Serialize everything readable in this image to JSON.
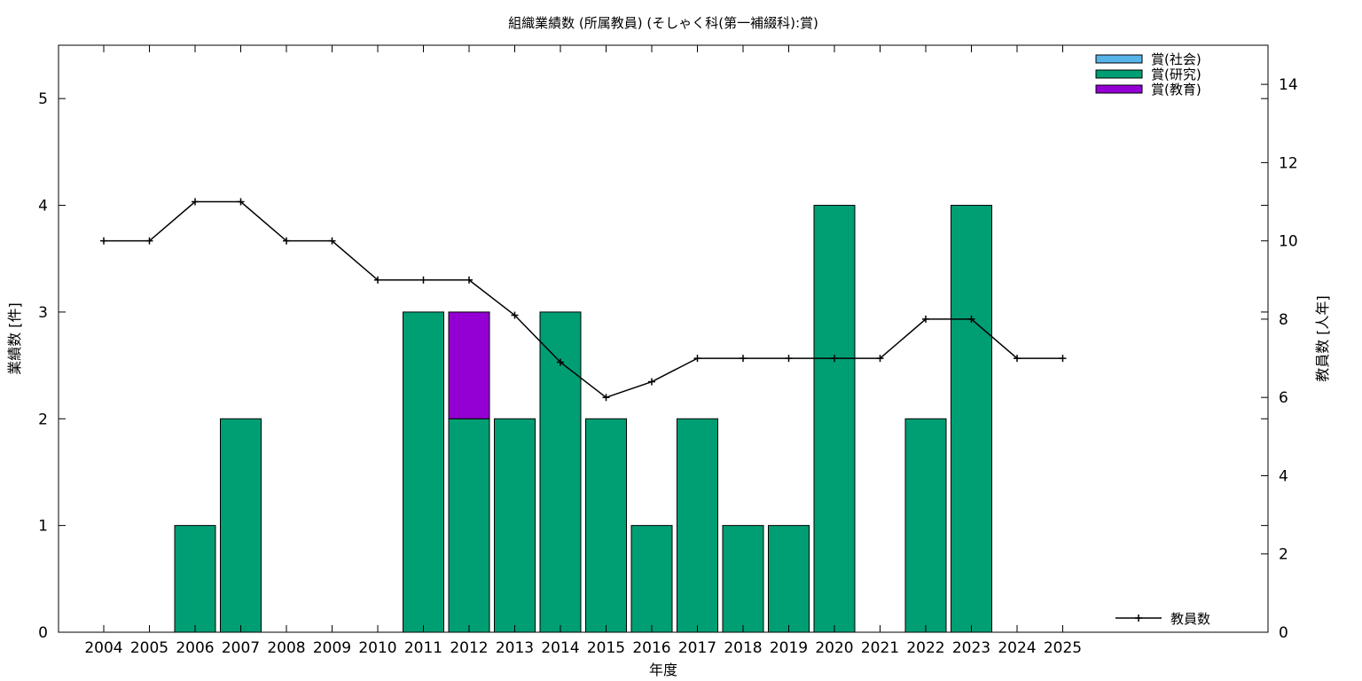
{
  "chart_data": {
    "type": "bar",
    "title": "組織業績数 (所属教員) (そしゃく科(第一補綴科):賞)",
    "xlabel": "年度",
    "ylabel": "業績数 [件]",
    "y2label": "教員数 [人年]",
    "categories": [
      "2004",
      "2005",
      "2006",
      "2007",
      "2008",
      "2009",
      "2010",
      "2011",
      "2012",
      "2013",
      "2014",
      "2015",
      "2016",
      "2017",
      "2018",
      "2019",
      "2020",
      "2021",
      "2022",
      "2023",
      "2024",
      "2025"
    ],
    "ylim": [
      0,
      5.5
    ],
    "y2lim": [
      0,
      15
    ],
    "yticks": [
      "0",
      "1",
      "2",
      "3",
      "4",
      "5"
    ],
    "y2ticks": [
      "0",
      "2",
      "4",
      "6",
      "8",
      "10",
      "12",
      "14"
    ],
    "grid": false,
    "legend_position": "top-right",
    "stacked": true,
    "series": [
      {
        "name": "賞(社会)",
        "color": "#56b4e9",
        "values": [
          0,
          0,
          0,
          0,
          0,
          0,
          0,
          0,
          0,
          0,
          0,
          0,
          0,
          0,
          0,
          0,
          0,
          0,
          0,
          0,
          0,
          0
        ]
      },
      {
        "name": "賞(研究)",
        "color": "#009e73",
        "values": [
          0,
          0,
          1,
          2,
          0,
          0,
          0,
          3,
          2,
          2,
          3,
          2,
          1,
          2,
          1,
          1,
          4,
          0,
          2,
          4,
          0,
          0
        ]
      },
      {
        "name": "賞(教育)",
        "color": "#9400d3",
        "values": [
          0,
          0,
          0,
          0,
          0,
          0,
          0,
          0,
          1,
          0,
          0,
          0,
          0,
          0,
          0,
          0,
          0,
          0,
          0,
          0,
          0,
          0
        ]
      }
    ],
    "line_series": {
      "name": "教員数",
      "color": "#000000",
      "axis": "y2",
      "values": [
        10,
        10,
        11,
        11,
        10,
        10,
        9,
        9,
        9,
        8.1,
        6.9,
        6,
        6.4,
        7,
        7,
        7,
        7,
        7,
        8,
        8,
        7,
        7
      ]
    }
  }
}
